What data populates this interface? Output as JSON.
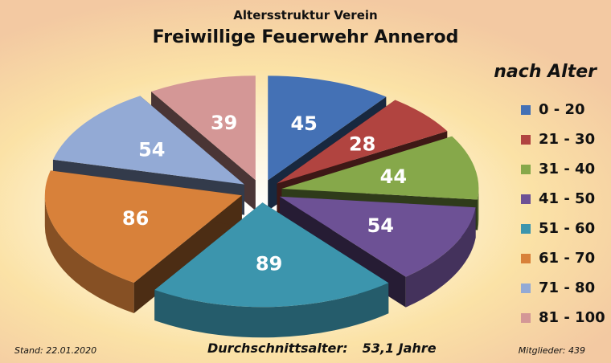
{
  "header": {
    "subtitle": "Altersstruktur Verein",
    "title": "Freiwillige Feuerwehr Annerod"
  },
  "legend": {
    "title": "nach Alter",
    "placement": "right"
  },
  "footer": {
    "date": "Stand: 22.01.2020",
    "average_label": "Durchschnittsalter:",
    "average_value": "53,1 Jahre",
    "members": "Mitglieder: 439"
  },
  "chart_data": {
    "type": "pie",
    "style": "3d-exploded",
    "title": "Freiwillige Feuerwehr Annerod",
    "subtitle": "Altersstruktur Verein",
    "categories": [
      "0 - 20",
      "21 - 30",
      "31 - 40",
      "41 - 50",
      "51 - 60",
      "61 - 70",
      "71 - 80",
      "81 - 100"
    ],
    "values": [
      45,
      28,
      44,
      54,
      89,
      86,
      54,
      39
    ],
    "colors": [
      "#4471b5",
      "#b14440",
      "#86a84a",
      "#6d5195",
      "#3c95ad",
      "#d8813a",
      "#93aad5",
      "#d49796"
    ]
  }
}
